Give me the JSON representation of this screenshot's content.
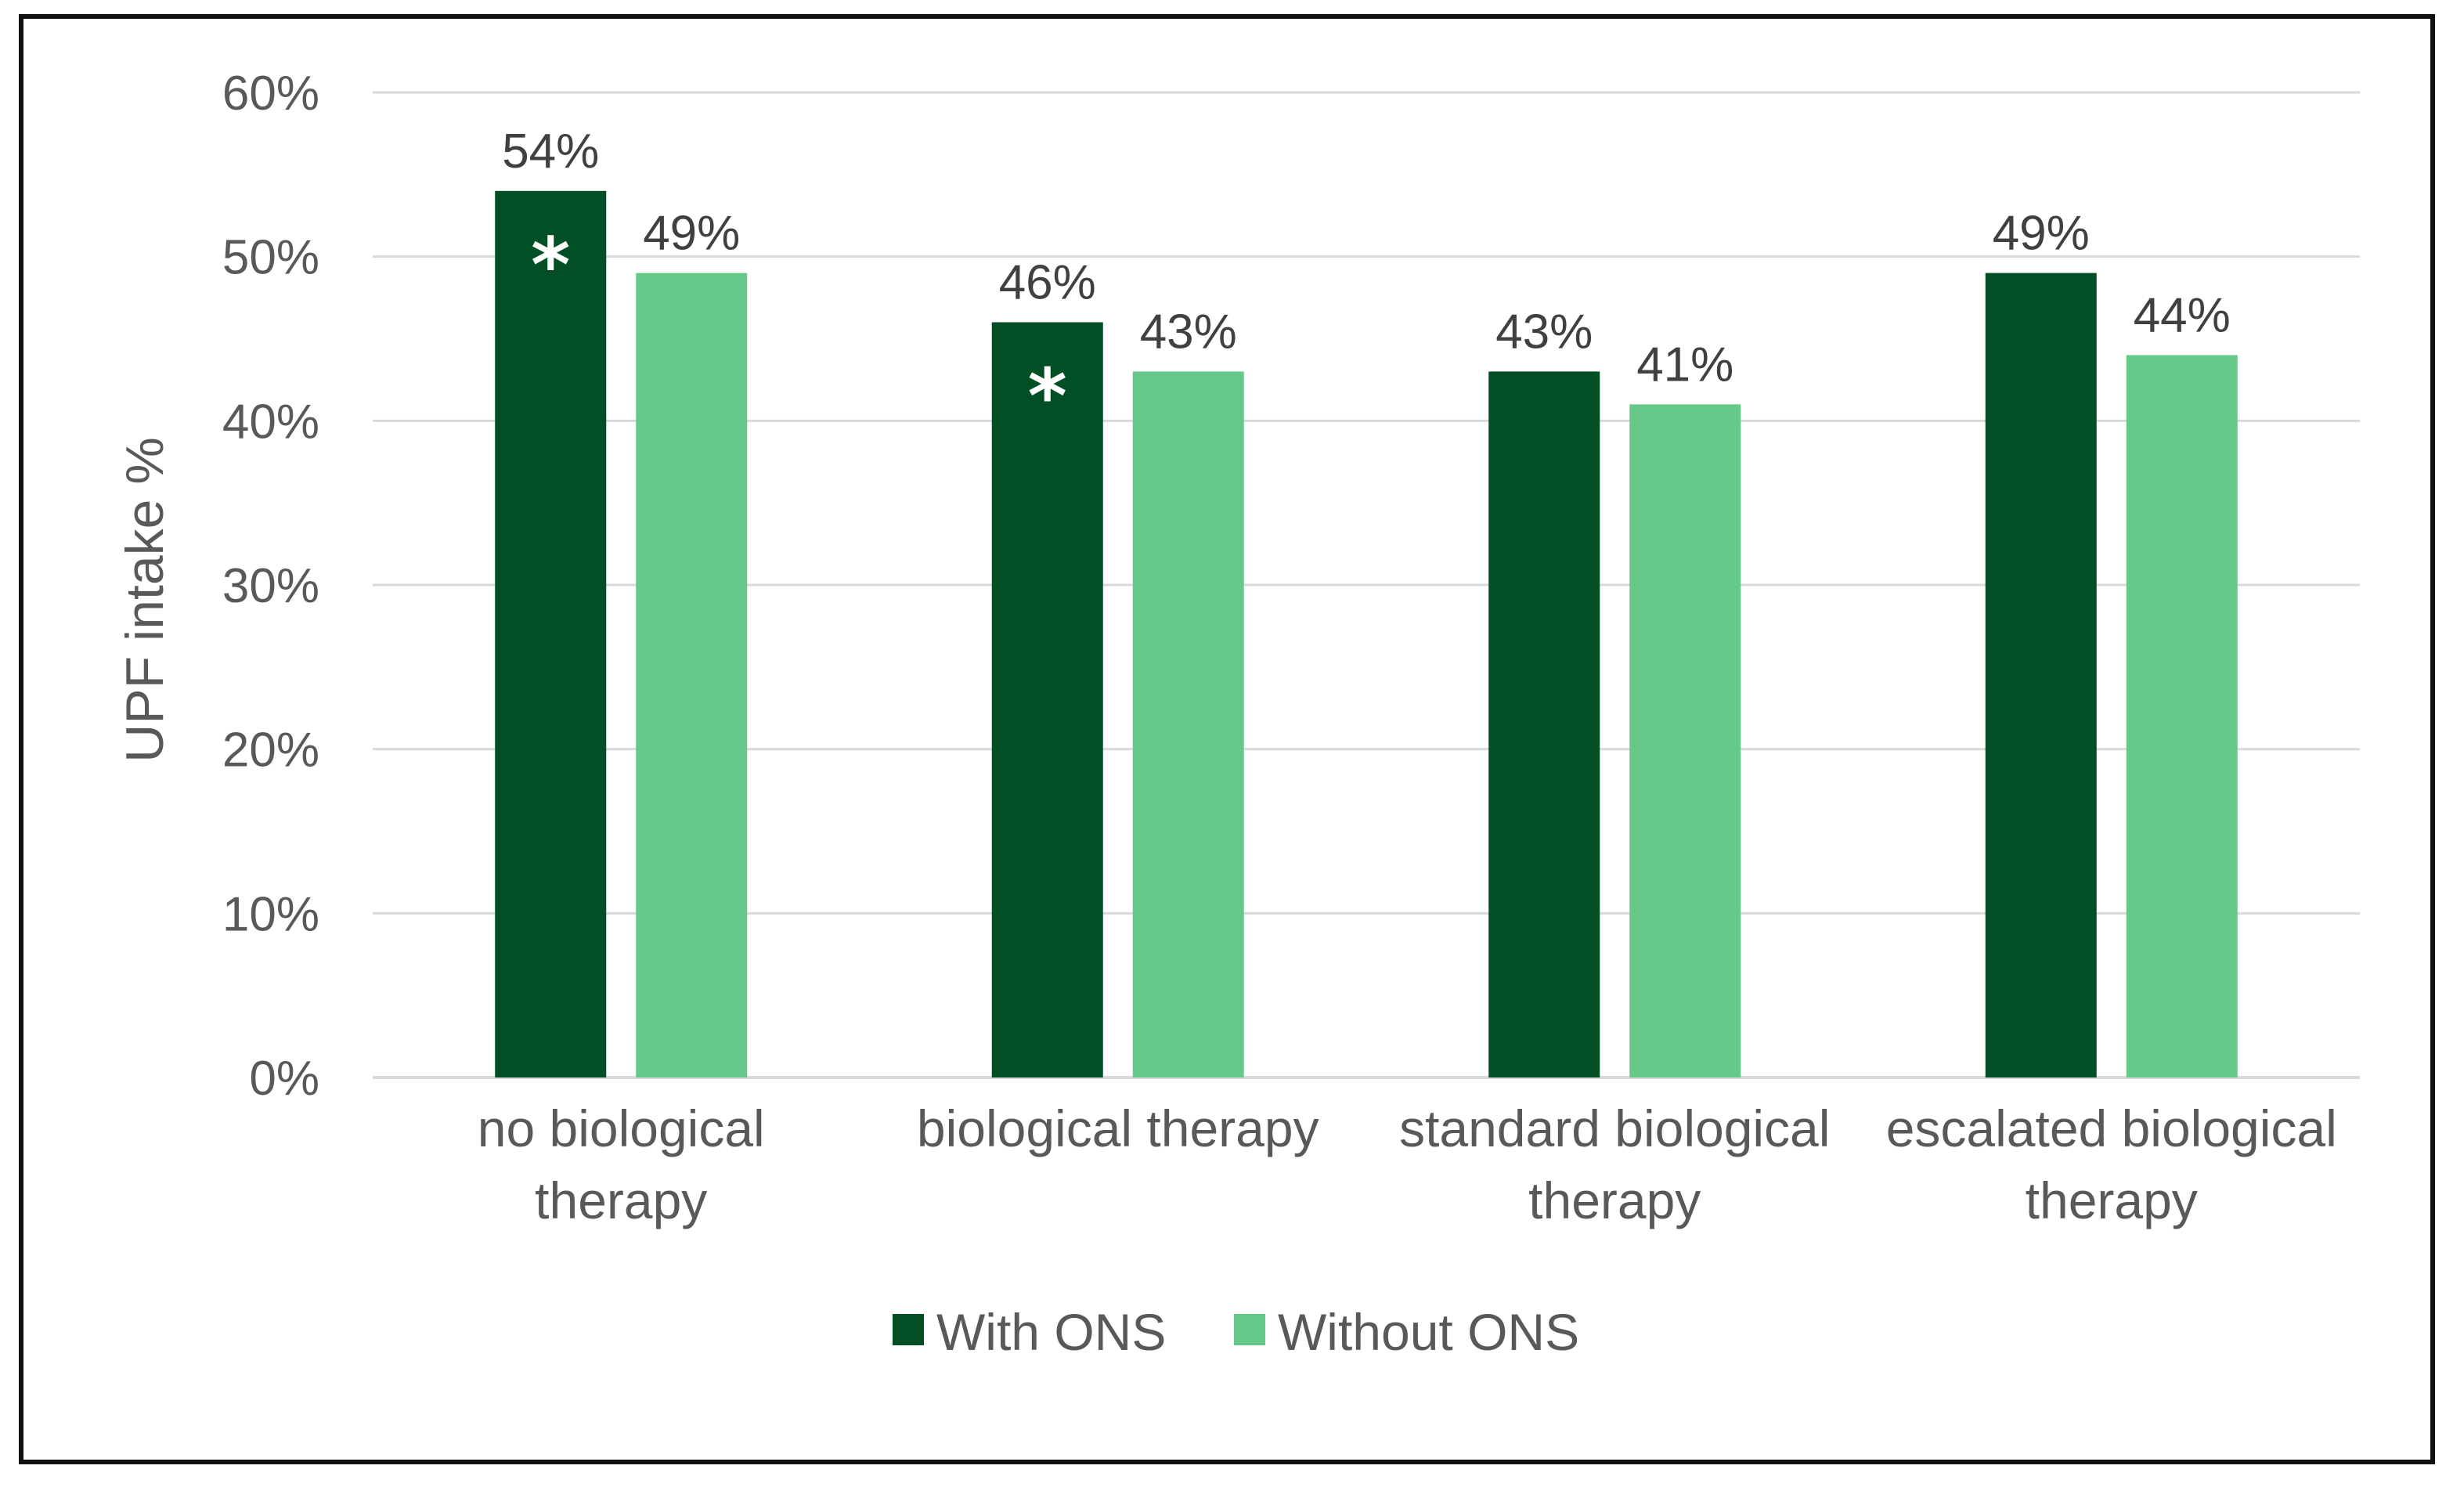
{
  "chart_data": {
    "type": "bar",
    "title": "",
    "xlabel": "",
    "ylabel": "UPF intake %",
    "ylim": [
      0,
      60
    ],
    "yticks": [
      0,
      10,
      20,
      30,
      40,
      50,
      60
    ],
    "ytick_labels": [
      "0%",
      "10%",
      "20%",
      "30%",
      "40%",
      "50%",
      "60%"
    ],
    "grid": true,
    "legend_position": "bottom",
    "categories": [
      [
        "no biological",
        "therapy"
      ],
      [
        "biological therapy"
      ],
      [
        "standard biological",
        "therapy"
      ],
      [
        "escalated biological",
        "therapy"
      ]
    ],
    "series": [
      {
        "name": "With ONS",
        "color": "#024F25",
        "values": [
          54,
          46,
          43,
          49
        ],
        "labels": [
          "54%",
          "46%",
          "43%",
          "49%"
        ],
        "significance": [
          "*",
          "*",
          "",
          ""
        ]
      },
      {
        "name": "Without ONS",
        "color": "#66C889",
        "values": [
          49,
          43,
          41,
          44
        ],
        "labels": [
          "49%",
          "43%",
          "41%",
          "44%"
        ],
        "significance": [
          "",
          "",
          "",
          ""
        ]
      }
    ],
    "gridline_color": "#D9D9D9",
    "axis_line_color": "#D9D9D9"
  }
}
